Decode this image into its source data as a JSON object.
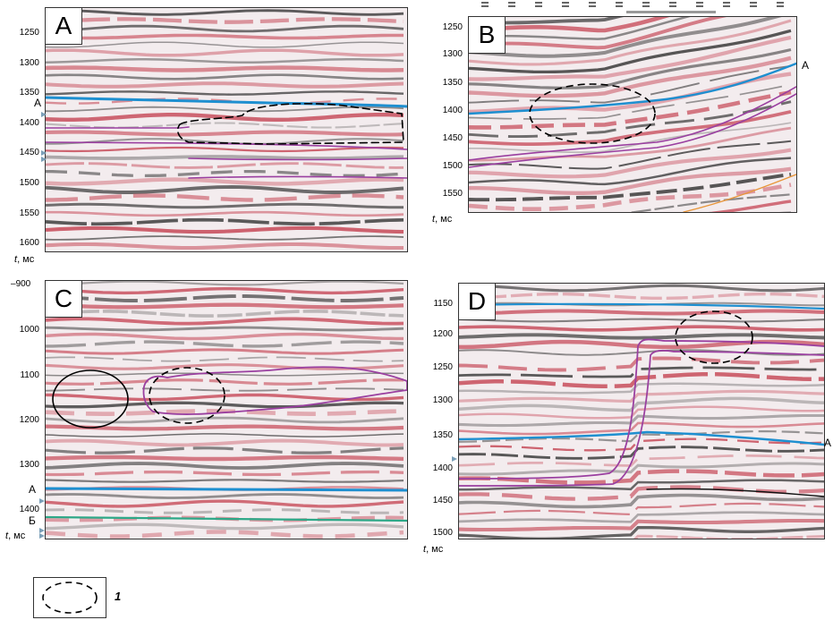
{
  "colors": {
    "horizon_a": "#1e8fd0",
    "horizon_b": "#2ea888",
    "anomaly_outline": "#9a3fa0",
    "trough": "#c23a4a",
    "peak": "#2a2a2a",
    "orange_line": "#e8963a"
  },
  "unit_label": {
    "t": "t",
    "rest": ", мс"
  },
  "legend": {
    "number": "1",
    "symbol": "dashed-ellipse"
  },
  "panels": [
    {
      "letter": "A",
      "ticks": [
        "1250",
        "1300",
        "1350",
        "1400",
        "1450",
        "1500",
        "1550",
        "1600"
      ],
      "horizon_labels": [
        "А"
      ]
    },
    {
      "letter": "B",
      "ticks": [
        "1250",
        "1300",
        "1350",
        "1400",
        "1450",
        "1500",
        "1550"
      ],
      "horizon_labels": [
        "А"
      ]
    },
    {
      "letter": "C",
      "ticks": [
        "900",
        "1000",
        "1100",
        "1200",
        "1300",
        "1400"
      ],
      "horizon_labels": [
        "А",
        "Б"
      ]
    },
    {
      "letter": "D",
      "ticks": [
        "1150",
        "1200",
        "1250",
        "1300",
        "1350",
        "1400",
        "1450",
        "1500"
      ],
      "horizon_labels": [
        "А"
      ]
    }
  ]
}
